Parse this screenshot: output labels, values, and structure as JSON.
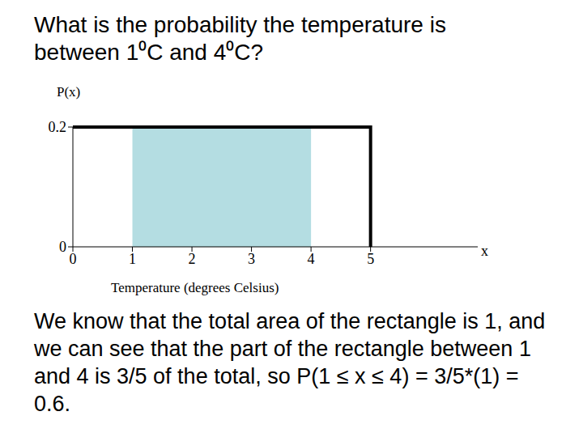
{
  "chart_data": {
    "type": "line",
    "title": "What is the probability the temperature is between 1⁰C and 4⁰C?",
    "y_label": "P(x)",
    "x_label": "Temperature (degrees Celsius)",
    "x_axis_name": "x",
    "x": [
      0,
      5,
      5
    ],
    "values": [
      0.2,
      0.2,
      0
    ],
    "color": "#000000",
    "shaded": {
      "x": [
        1,
        4
      ],
      "values": [
        0.2,
        0.2
      ],
      "color": "#b4dde2"
    },
    "xlim": [
      0,
      6.8
    ],
    "xticks": [
      0,
      1,
      2,
      3,
      4,
      5
    ],
    "ylim": [
      0,
      0.2
    ],
    "yticks": [
      0,
      0.2
    ],
    "grid": false,
    "annotations": [
      "We know that the total area of the rectangle is 1, and we can see that the part of the rectangle between 1 and 4 is 3/5 of the total, so P(1 ≤ x ≤ 4) = 3/5*(1) = 0.6."
    ]
  }
}
